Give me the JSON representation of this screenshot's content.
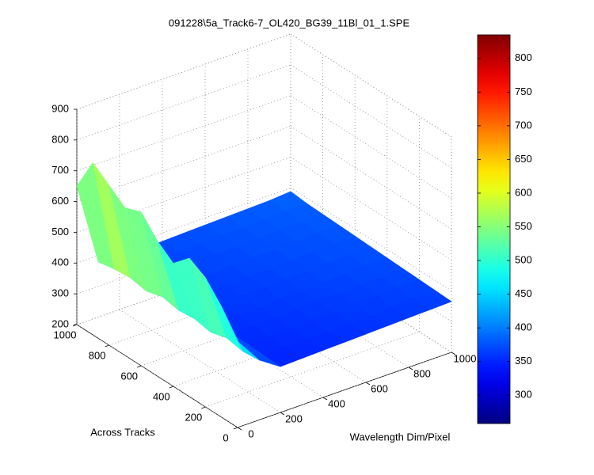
{
  "chart_data": {
    "type": "surface",
    "title": "091228\\5a_Track6-7_OL420_BG39_11Bl_01_1.SPE",
    "xlabel": "Wavelength Dim/Pixel",
    "ylabel": "Across Tracks",
    "colormap": "jet",
    "grid": true,
    "x": [
      0,
      100,
      200,
      300,
      400,
      500,
      600,
      700,
      800,
      900,
      1000
    ],
    "y": [
      0,
      100,
      200,
      300,
      400,
      500,
      600,
      700,
      800,
      900,
      1000
    ],
    "z": [
      [
        480,
        395,
        349,
        351,
        353,
        355,
        357,
        359,
        361,
        363,
        365
      ],
      [
        560,
        390,
        351,
        353,
        355,
        357,
        359,
        361,
        363,
        365,
        367
      ],
      [
        620,
        400,
        353,
        355,
        357,
        359,
        361,
        363,
        365,
        367,
        369
      ],
      [
        650,
        385,
        355,
        357,
        359,
        361,
        363,
        365,
        367,
        369,
        371
      ],
      [
        600,
        395,
        357,
        359,
        361,
        363,
        365,
        367,
        369,
        371,
        373
      ],
      [
        640,
        390,
        359,
        361,
        363,
        365,
        367,
        369,
        371,
        373,
        375
      ],
      [
        700,
        400,
        361,
        363,
        365,
        367,
        369,
        371,
        373,
        375,
        377
      ],
      [
        680,
        385,
        363,
        365,
        367,
        369,
        371,
        373,
        375,
        377,
        379
      ],
      [
        720,
        395,
        365,
        367,
        369,
        371,
        373,
        375,
        377,
        379,
        381
      ],
      [
        760,
        390,
        367,
        369,
        371,
        373,
        375,
        377,
        379,
        381,
        383
      ],
      [
        650,
        380,
        369,
        371,
        373,
        375,
        377,
        379,
        381,
        383,
        388
      ]
    ],
    "xlim": [
      0,
      1000
    ],
    "xticks": [
      0,
      200,
      400,
      600,
      800,
      1000
    ],
    "ylim": [
      0,
      1000
    ],
    "yticks": [
      0,
      200,
      400,
      600,
      800,
      1000
    ],
    "zlim": [
      200,
      900
    ],
    "zticks": [
      200,
      300,
      400,
      500,
      600,
      700,
      800,
      900
    ],
    "clim": [
      258,
      835
    ],
    "cticks": [
      300,
      350,
      400,
      450,
      500,
      550,
      600,
      650,
      700,
      750,
      800
    ]
  }
}
